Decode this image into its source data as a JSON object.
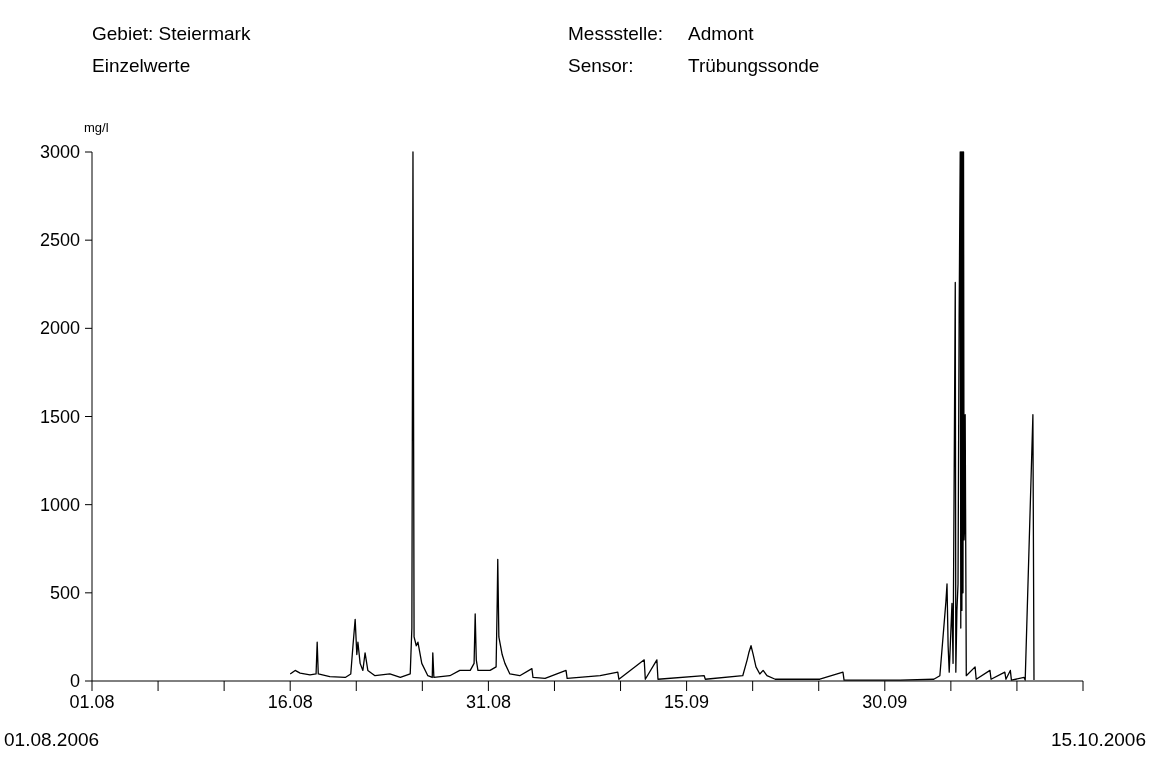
{
  "chart_data": {
    "type": "line",
    "ylabel": "mg/l",
    "annotations": [
      "Gebiet: Steiermark",
      "Einzelwerte",
      "Messstelle:",
      "Admont",
      "Sensor:",
      "Trübungssonde",
      "01.08.2006",
      "15.10.2006"
    ],
    "xlim": [
      "2006-08-01",
      "2006-10-15"
    ],
    "xticks": [
      {
        "value": "2006-08-01",
        "label": "01.08"
      },
      {
        "value": "2006-08-06",
        "label": null
      },
      {
        "value": "2006-08-11",
        "label": null
      },
      {
        "value": "2006-08-16",
        "label": "16.08"
      },
      {
        "value": "2006-08-21",
        "label": null
      },
      {
        "value": "2006-08-26",
        "label": null
      },
      {
        "value": "2006-08-31",
        "label": "31.08"
      },
      {
        "value": "2006-09-05",
        "label": null
      },
      {
        "value": "2006-09-10",
        "label": null
      },
      {
        "value": "2006-09-15",
        "label": "15.09"
      },
      {
        "value": "2006-09-20",
        "label": null
      },
      {
        "value": "2006-09-25",
        "label": null
      },
      {
        "value": "2006-09-30",
        "label": "30.09"
      },
      {
        "value": "2006-10-05",
        "label": null
      },
      {
        "value": "2006-10-10",
        "label": null
      },
      {
        "value": "2006-10-15",
        "label": null
      }
    ],
    "ylim": [
      0,
      3000
    ],
    "yticks": [
      0,
      500,
      1000,
      1500,
      2000,
      2500,
      3000
    ],
    "grid": false,
    "marker": "none",
    "line_style": "solid",
    "series": [
      {
        "color": "#000000",
        "x": [
          "2006-08-16T00:00",
          "2006-08-16T09:00",
          "2006-08-16T18:00",
          "2006-08-17T12:00",
          "2006-08-17T23:00",
          "2006-08-18T01:00",
          "2006-08-18T03:00",
          "2006-08-19T00:00",
          "2006-08-20T04:00",
          "2006-08-20T14:00",
          "2006-08-20T18:00",
          "2006-08-20T22:00",
          "2006-08-21T01:00",
          "2006-08-21T03:00",
          "2006-08-21T07:00",
          "2006-08-21T12:00",
          "2006-08-21T16:00",
          "2006-08-21T21:00",
          "2006-08-22T10:00",
          "2006-08-23T13:00",
          "2006-08-24T08:00",
          "2006-08-25T02:00",
          "2006-08-25T05:00",
          "2006-08-25T07:00",
          "2006-08-25T09:00",
          "2006-08-25T13:00",
          "2006-08-25T16:00",
          "2006-08-25T23:00",
          "2006-08-26T10:00",
          "2006-08-26T18:00",
          "2006-08-26T19:00",
          "2006-08-26T21:00",
          "2006-08-28T02:00",
          "2006-08-28T20:00",
          "2006-08-29T15:00",
          "2006-08-29T22:00",
          "2006-08-30T00:00",
          "2006-08-30T02:00",
          "2006-08-30T05:00",
          "2006-08-31T03:00",
          "2006-08-31T14:00",
          "2006-08-31T16:00",
          "2006-08-31T17:00",
          "2006-08-31T19:00",
          "2006-09-01T01:00",
          "2006-09-01T06:00",
          "2006-09-01T15:00",
          "2006-09-02T09:00",
          "2006-09-03T07:00",
          "2006-09-03T09:00",
          "2006-09-04T07:00",
          "2006-09-05T21:00",
          "2006-09-05T23:00",
          "2006-09-08T11:00",
          "2006-09-09T19:00",
          "2006-09-09T21:00",
          "2006-09-11T19:00",
          "2006-09-11T21:00",
          "2006-09-12T18:00",
          "2006-09-12T20:00",
          "2006-09-16T08:00",
          "2006-09-16T10:00",
          "2006-09-19T06:00",
          "2006-09-19T14:00",
          "2006-09-19T17:00",
          "2006-09-19T21:00",
          "2006-09-20T01:00",
          "2006-09-20T06:00",
          "2006-09-20T13:00",
          "2006-09-20T19:00",
          "2006-09-21T02:00",
          "2006-09-21T17:00",
          "2006-09-25T02:00",
          "2006-09-26T20:00",
          "2006-09-26T22:00",
          "2006-10-01T04:00",
          "2006-10-03T17:00",
          "2006-10-04T04:00",
          "2006-10-04T15:00",
          "2006-10-04T17:00",
          "2006-10-04T19:00",
          "2006-10-04T21:00",
          "2006-10-05T02:00",
          "2006-10-05T04:00",
          "2006-10-05T08:00",
          "2006-10-05T09:00",
          "2006-10-05T11:00",
          "2006-10-05T13:00",
          "2006-10-05T15:00",
          "2006-10-05T17:00",
          "2006-10-05T18:00",
          "2006-10-05T19:00",
          "2006-10-05T20:00",
          "2006-10-05T21:00",
          "2006-10-05T22:00",
          "2006-10-05T23:00",
          "2006-10-06T00:00",
          "2006-10-06T01:00",
          "2006-10-06T02:00",
          "2006-10-06T04:00",
          "2006-10-06T20:00",
          "2006-10-06T22:00",
          "2006-10-07T23:00",
          "2006-10-08T01:00",
          "2006-10-09T02:00",
          "2006-10-09T04:00",
          "2006-10-09T12:00",
          "2006-10-09T14:00",
          "2006-10-10T13:00",
          "2006-10-10T15:00",
          "2006-10-11T05:00",
          "2006-10-11T07:00"
        ],
        "values": [
          40,
          60,
          45,
          35,
          40,
          220,
          40,
          25,
          20,
          40,
          200,
          350,
          150,
          220,
          100,
          60,
          160,
          60,
          30,
          40,
          20,
          40,
          300,
          3000,
          250,
          200,
          220,
          100,
          30,
          20,
          160,
          20,
          30,
          60,
          60,
          100,
          380,
          120,
          60,
          60,
          80,
          450,
          690,
          250,
          150,
          100,
          40,
          30,
          70,
          20,
          15,
          60,
          15,
          30,
          50,
          10,
          120,
          10,
          120,
          10,
          30,
          10,
          30,
          120,
          160,
          200,
          150,
          80,
          40,
          60,
          30,
          10,
          10,
          50,
          5,
          5,
          10,
          30,
          450,
          550,
          200,
          50,
          440,
          100,
          2260,
          50,
          400,
          550,
          2060,
          3000,
          300,
          3000,
          400,
          3000,
          500,
          3000,
          800,
          870,
          1510,
          30,
          80,
          10,
          60,
          10,
          50,
          10,
          60,
          5,
          20,
          5,
          1510,
          5
        ]
      }
    ]
  }
}
